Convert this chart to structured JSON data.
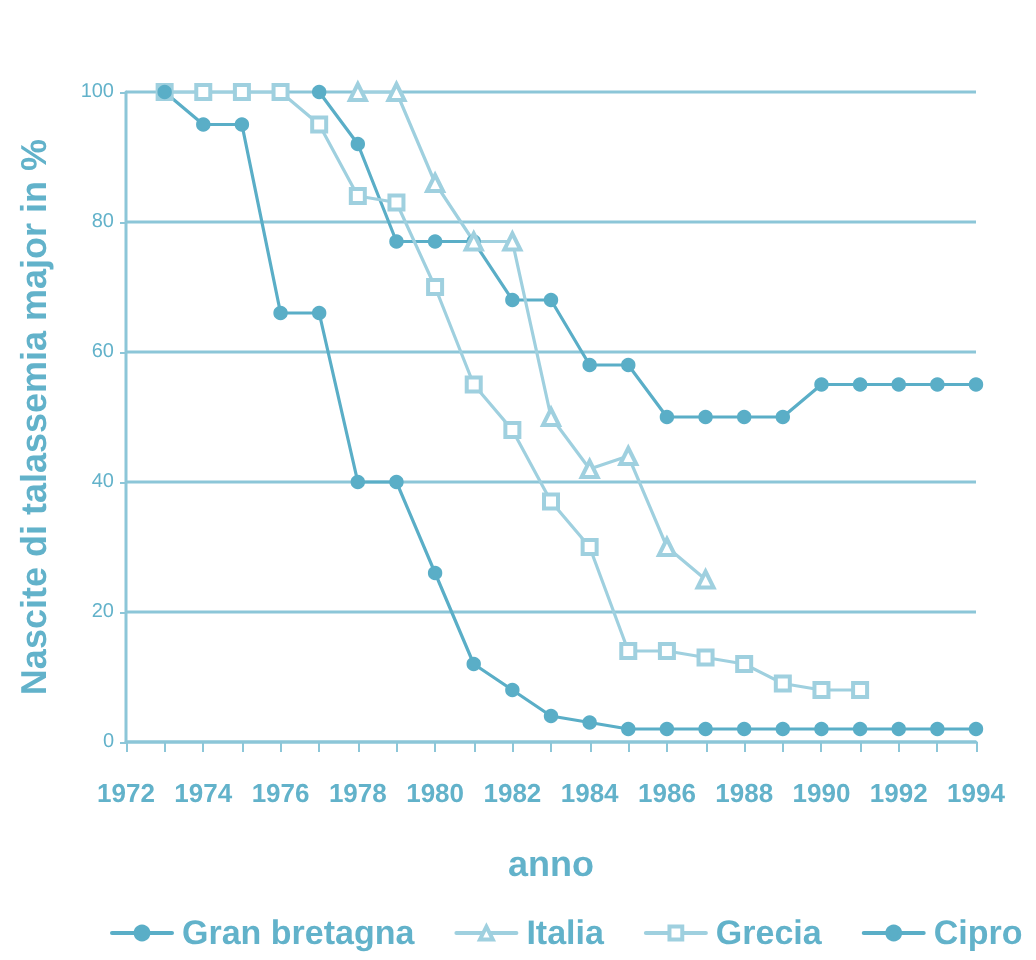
{
  "chart_data": {
    "type": "line",
    "xlabel": "anno",
    "ylabel": "Nascite di talassemia major in %",
    "x": [
      1973,
      1974,
      1975,
      1976,
      1977,
      1978,
      1979,
      1980,
      1981,
      1982,
      1983,
      1984,
      1985,
      1986,
      1987,
      1988,
      1989,
      1990,
      1991,
      1992,
      1993,
      1994
    ],
    "series": [
      {
        "name": "Gran bretagna",
        "color": "#5aaec7",
        "marker": "circle",
        "values": [
          null,
          null,
          null,
          null,
          100,
          92,
          77,
          77,
          77,
          68,
          68,
          58,
          58,
          50,
          50,
          50,
          50,
          55,
          55,
          55,
          55,
          55
        ]
      },
      {
        "name": "Italia",
        "color": "#9fd0df",
        "marker": "triangle",
        "values": [
          null,
          null,
          null,
          null,
          null,
          100,
          100,
          86,
          77,
          77,
          50,
          42,
          44,
          30,
          25,
          null,
          null,
          null,
          null,
          null,
          null,
          null
        ]
      },
      {
        "name": "Grecia",
        "color": "#9fd0df",
        "marker": "square",
        "values": [
          100,
          100,
          100,
          100,
          95,
          84,
          83,
          70,
          55,
          48,
          37,
          30,
          14,
          14,
          13,
          12,
          9,
          8,
          8,
          null,
          null,
          null
        ]
      },
      {
        "name": "Cipro",
        "color": "#5aaec7",
        "marker": "circle",
        "values": [
          100,
          95,
          95,
          66,
          66,
          40,
          40,
          26,
          12,
          8,
          4,
          3,
          2,
          2,
          2,
          2,
          2,
          2,
          2,
          2,
          2,
          2
        ]
      }
    ],
    "xlim": [
      1972,
      1994
    ],
    "xticks": [
      1972,
      {
        "value": 1973,
        "label": null
      },
      1974,
      {
        "value": 1975,
        "label": null
      },
      1976,
      {
        "value": 1977,
        "label": null
      },
      1978,
      {
        "value": 1979,
        "label": null
      },
      1980,
      {
        "value": 1981,
        "label": null
      },
      1982,
      {
        "value": 1983,
        "label": null
      },
      1984,
      {
        "value": 1985,
        "label": null
      },
      1986,
      {
        "value": 1987,
        "label": null
      },
      1988,
      {
        "value": 1989,
        "label": null
      },
      1990,
      {
        "value": 1991,
        "label": null
      },
      1992,
      {
        "value": 1993,
        "label": null
      },
      1994
    ],
    "ylim": [
      0,
      100
    ],
    "yticks": [
      0,
      20,
      40,
      60,
      80,
      100
    ],
    "grid": "y",
    "legend": "bottom",
    "line_style": "solid"
  }
}
